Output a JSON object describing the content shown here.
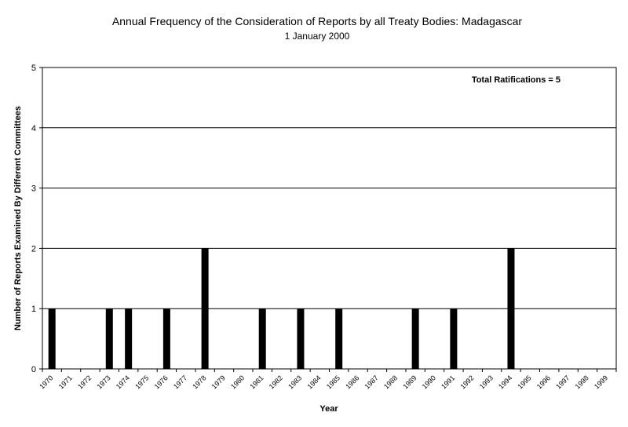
{
  "chart_data": {
    "type": "bar",
    "title": "Annual Frequency of the Consideration of Reports by all Treaty Bodies: Madagascar",
    "subtitle": "1 January 2000",
    "xlabel": "Year",
    "ylabel": "Number of Reports Examined By Different Committees",
    "annotation": "Total Ratifications = 5",
    "ylim": [
      0,
      5
    ],
    "yticks": [
      0,
      1,
      2,
      3,
      4,
      5
    ],
    "grid": true,
    "categories": [
      "1970",
      "1971",
      "1972",
      "1973",
      "1974",
      "1975",
      "1976",
      "1977",
      "1978",
      "1979",
      "1980",
      "1981",
      "1982",
      "1983",
      "1984",
      "1985",
      "1986",
      "1987",
      "1988",
      "1989",
      "1990",
      "1991",
      "1992",
      "1993",
      "1994",
      "1995",
      "1996",
      "1997",
      "1998",
      "1999"
    ],
    "values": [
      1,
      0,
      0,
      1,
      1,
      0,
      1,
      0,
      2,
      0,
      0,
      1,
      0,
      1,
      0,
      1,
      0,
      0,
      0,
      1,
      0,
      1,
      0,
      0,
      2,
      0,
      0,
      0,
      0,
      0
    ],
    "bar_color": "#000000"
  }
}
